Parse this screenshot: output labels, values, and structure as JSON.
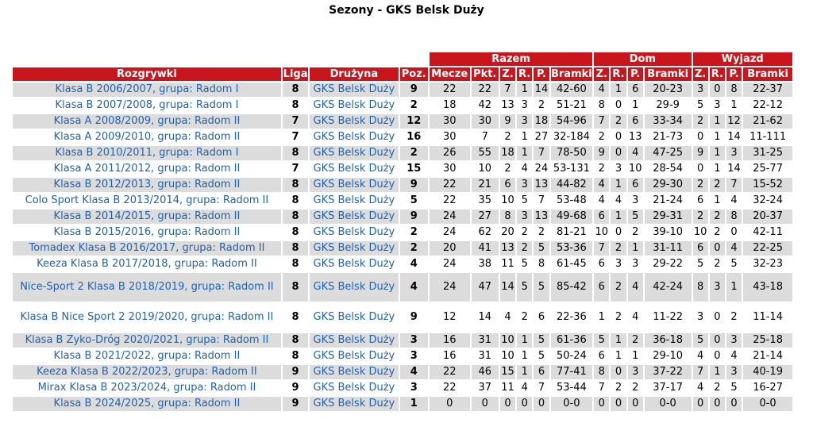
{
  "page": {
    "title": "Sezony - GKS Belsk Duży"
  },
  "groups": {
    "razem": "Razem",
    "dom": "Dom",
    "wyjazd": "Wyjazd"
  },
  "headers": {
    "competition": "Rozgrywki",
    "league": "Liga",
    "team": "Drużyna",
    "position": "Poz.",
    "matches": "Mecze",
    "points": "Pkt.",
    "w": "Z.",
    "d": "R.",
    "l": "P.",
    "goals": "Bramki"
  },
  "rows": [
    {
      "competition": "Klasa B 2006/2007, grupa: Radom I",
      "league": "8",
      "team": "GKS Belsk Duży",
      "position": "9",
      "matches": "22",
      "points": "22",
      "w": "7",
      "d": "1",
      "l": "14",
      "goals": "42-60",
      "home_w": "4",
      "home_d": "1",
      "home_l": "6",
      "home_goals": "20-23",
      "away_w": "3",
      "away_d": "0",
      "away_l": "8",
      "away_goals": "22-37"
    },
    {
      "competition": "Klasa B 2007/2008, grupa: Radom I",
      "league": "8",
      "team": "GKS Belsk Duży",
      "position": "2",
      "matches": "18",
      "points": "42",
      "w": "13",
      "d": "3",
      "l": "2",
      "goals": "51-21",
      "home_w": "8",
      "home_d": "0",
      "home_l": "1",
      "home_goals": "29-9",
      "away_w": "5",
      "away_d": "3",
      "away_l": "1",
      "away_goals": "22-12"
    },
    {
      "competition": "Klasa A 2008/2009, grupa: Radom II",
      "league": "7",
      "team": "GKS Belsk Duży",
      "position": "12",
      "matches": "30",
      "points": "30",
      "w": "9",
      "d": "3",
      "l": "18",
      "goals": "54-96",
      "home_w": "7",
      "home_d": "2",
      "home_l": "6",
      "home_goals": "33-34",
      "away_w": "2",
      "away_d": "1",
      "away_l": "12",
      "away_goals": "21-62"
    },
    {
      "competition": "Klasa A 2009/2010, grupa: Radom II",
      "league": "7",
      "team": "GKS Belsk Duży",
      "position": "16",
      "matches": "30",
      "points": "7",
      "w": "2",
      "d": "1",
      "l": "27",
      "goals": "32-184",
      "home_w": "2",
      "home_d": "0",
      "home_l": "13",
      "home_goals": "21-73",
      "away_w": "0",
      "away_d": "1",
      "away_l": "14",
      "away_goals": "11-111"
    },
    {
      "competition": "Klasa B 2010/2011, grupa: Radom I",
      "league": "8",
      "team": "GKS Belsk Duży",
      "position": "2",
      "matches": "26",
      "points": "55",
      "w": "18",
      "d": "1",
      "l": "7",
      "goals": "78-50",
      "home_w": "9",
      "home_d": "0",
      "home_l": "4",
      "home_goals": "47-25",
      "away_w": "9",
      "away_d": "1",
      "away_l": "3",
      "away_goals": "31-25"
    },
    {
      "competition": "Klasa A 2011/2012, grupa: Radom II",
      "league": "7",
      "team": "GKS Belsk Duży",
      "position": "15",
      "matches": "30",
      "points": "10",
      "w": "2",
      "d": "4",
      "l": "24",
      "goals": "53-131",
      "home_w": "2",
      "home_d": "3",
      "home_l": "10",
      "home_goals": "28-54",
      "away_w": "0",
      "away_d": "1",
      "away_l": "14",
      "away_goals": "25-77"
    },
    {
      "competition": "Klasa B 2012/2013, grupa: Radom II",
      "league": "8",
      "team": "GKS Belsk Duży",
      "position": "9",
      "matches": "22",
      "points": "21",
      "w": "6",
      "d": "3",
      "l": "13",
      "goals": "44-82",
      "home_w": "4",
      "home_d": "1",
      "home_l": "6",
      "home_goals": "29-30",
      "away_w": "2",
      "away_d": "2",
      "away_l": "7",
      "away_goals": "15-52"
    },
    {
      "competition": "Colo Sport Klasa B 2013/2014, grupa: Radom II",
      "league": "8",
      "team": "GKS Belsk Duży",
      "position": "5",
      "matches": "22",
      "points": "35",
      "w": "10",
      "d": "5",
      "l": "7",
      "goals": "53-48",
      "home_w": "4",
      "home_d": "4",
      "home_l": "3",
      "home_goals": "21-24",
      "away_w": "6",
      "away_d": "1",
      "away_l": "4",
      "away_goals": "32-24"
    },
    {
      "competition": "Klasa B 2014/2015, grupa: Radom II",
      "league": "8",
      "team": "GKS Belsk Duży",
      "position": "9",
      "matches": "24",
      "points": "27",
      "w": "8",
      "d": "3",
      "l": "13",
      "goals": "49-68",
      "home_w": "6",
      "home_d": "1",
      "home_l": "5",
      "home_goals": "29-31",
      "away_w": "2",
      "away_d": "2",
      "away_l": "8",
      "away_goals": "20-37"
    },
    {
      "competition": "Klasa B 2015/2016, grupa: Radom II",
      "league": "8",
      "team": "GKS Belsk Duży",
      "position": "2",
      "matches": "24",
      "points": "62",
      "w": "20",
      "d": "2",
      "l": "2",
      "goals": "81-21",
      "home_w": "10",
      "home_d": "0",
      "home_l": "2",
      "home_goals": "39-10",
      "away_w": "10",
      "away_d": "2",
      "away_l": "0",
      "away_goals": "42-11"
    },
    {
      "competition": "Tomadex Klasa B 2016/2017, grupa: Radom II",
      "league": "8",
      "team": "GKS Belsk Duży",
      "position": "2",
      "matches": "20",
      "points": "41",
      "w": "13",
      "d": "2",
      "l": "5",
      "goals": "53-36",
      "home_w": "7",
      "home_d": "2",
      "home_l": "1",
      "home_goals": "31-11",
      "away_w": "6",
      "away_d": "0",
      "away_l": "4",
      "away_goals": "22-25"
    },
    {
      "competition": "Keeza Klasa B 2017/2018, grupa: Radom II",
      "league": "8",
      "team": "GKS Belsk Duży",
      "position": "4",
      "matches": "24",
      "points": "38",
      "w": "11",
      "d": "5",
      "l": "8",
      "goals": "61-45",
      "home_w": "6",
      "home_d": "3",
      "home_l": "3",
      "home_goals": "29-22",
      "away_w": "5",
      "away_d": "2",
      "away_l": "5",
      "away_goals": "32-23"
    },
    {
      "competition": "Nice-Sport 2 Klasa B 2018/2019, grupa: Radom II",
      "league": "8",
      "team": "GKS Belsk Duży",
      "position": "4",
      "matches": "24",
      "points": "47",
      "w": "14",
      "d": "5",
      "l": "5",
      "goals": "85-42",
      "home_w": "6",
      "home_d": "2",
      "home_l": "4",
      "home_goals": "42-24",
      "away_w": "8",
      "away_d": "3",
      "away_l": "1",
      "away_goals": "43-18",
      "tall": true
    },
    {
      "competition": "Klasa B Nice Sport 2 2019/2020, grupa: Radom II",
      "league": "8",
      "team": "GKS Belsk Duży",
      "position": "9",
      "matches": "12",
      "points": "14",
      "w": "4",
      "d": "2",
      "l": "6",
      "goals": "22-36",
      "home_w": "1",
      "home_d": "2",
      "home_l": "4",
      "home_goals": "11-22",
      "away_w": "3",
      "away_d": "0",
      "away_l": "2",
      "away_goals": "11-14",
      "tall": true
    },
    {
      "competition": "Klasa B Zyko-Dróg 2020/2021, grupa: Radom II",
      "league": "8",
      "team": "GKS Belsk Duży",
      "position": "3",
      "matches": "16",
      "points": "31",
      "w": "10",
      "d": "1",
      "l": "5",
      "goals": "61-36",
      "home_w": "5",
      "home_d": "1",
      "home_l": "2",
      "home_goals": "36-18",
      "away_w": "5",
      "away_d": "0",
      "away_l": "3",
      "away_goals": "25-18"
    },
    {
      "competition": "Klasa B 2021/2022, grupa: Radom II",
      "league": "8",
      "team": "GKS Belsk Duży",
      "position": "3",
      "matches": "16",
      "points": "31",
      "w": "10",
      "d": "1",
      "l": "5",
      "goals": "50-24",
      "home_w": "6",
      "home_d": "1",
      "home_l": "1",
      "home_goals": "29-10",
      "away_w": "4",
      "away_d": "0",
      "away_l": "4",
      "away_goals": "21-14"
    },
    {
      "competition": "Keeza Klasa B 2022/2023, grupa: Radom II",
      "league": "9",
      "team": "GKS Belsk Duży",
      "position": "4",
      "matches": "22",
      "points": "46",
      "w": "15",
      "d": "1",
      "l": "6",
      "goals": "77-41",
      "home_w": "8",
      "home_d": "0",
      "home_l": "3",
      "home_goals": "37-22",
      "away_w": "7",
      "away_d": "1",
      "away_l": "3",
      "away_goals": "40-19"
    },
    {
      "competition": "Mirax Klasa B 2023/2024, grupa: Radom II",
      "league": "9",
      "team": "GKS Belsk Duży",
      "position": "3",
      "matches": "22",
      "points": "37",
      "w": "11",
      "d": "4",
      "l": "7",
      "goals": "53-44",
      "home_w": "7",
      "home_d": "2",
      "home_l": "2",
      "home_goals": "37-17",
      "away_w": "4",
      "away_d": "2",
      "away_l": "5",
      "away_goals": "16-27"
    },
    {
      "competition": "Klasa B 2024/2025, grupa: Radom II",
      "league": "9",
      "team": "GKS Belsk Duży",
      "position": "1",
      "matches": "0",
      "points": "0",
      "w": "0",
      "d": "0",
      "l": "0",
      "goals": "0-0",
      "home_w": "0",
      "home_d": "0",
      "home_l": "0",
      "home_goals": "0-0",
      "away_w": "0",
      "away_d": "0",
      "away_l": "0",
      "away_goals": "0-0"
    }
  ]
}
